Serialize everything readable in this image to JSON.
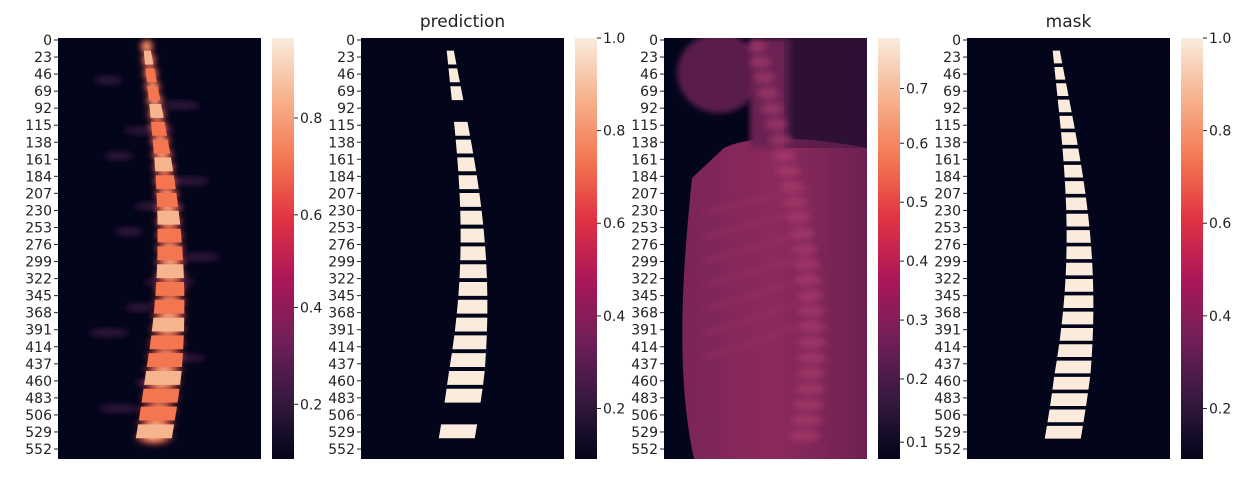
{
  "chart_data": [
    {
      "type": "heatmap",
      "title": "",
      "y_ticks": [
        "0",
        "23",
        "46",
        "69",
        "92",
        "115",
        "138",
        "161",
        "184",
        "207",
        "230",
        "253",
        "276",
        "299",
        "322",
        "345",
        "368",
        "391",
        "414",
        "437",
        "460",
        "483",
        "506",
        "529",
        "552"
      ],
      "colorbar": {
        "ticks": [
          "0.8",
          "0.6",
          "0.4",
          "0.2"
        ]
      },
      "content": "spine-probability"
    },
    {
      "type": "heatmap",
      "title": "prediction",
      "y_ticks": [
        "0",
        "23",
        "46",
        "69",
        "92",
        "115",
        "138",
        "161",
        "184",
        "207",
        "230",
        "253",
        "276",
        "299",
        "322",
        "345",
        "368",
        "391",
        "414",
        "437",
        "460",
        "483",
        "506",
        "529",
        "552"
      ],
      "colorbar": {
        "ticks": [
          "1.0",
          "0.8",
          "0.6",
          "0.4",
          "0.2"
        ]
      },
      "content": "spine-binary-fragmented"
    },
    {
      "type": "heatmap",
      "title": "",
      "y_ticks": [
        "0",
        "23",
        "46",
        "69",
        "92",
        "115",
        "138",
        "161",
        "184",
        "207",
        "230",
        "253",
        "276",
        "299",
        "322",
        "345",
        "368",
        "391",
        "414",
        "437",
        "460",
        "483",
        "506",
        "529",
        "552"
      ],
      "colorbar": {
        "ticks": [
          "0.7",
          "0.6",
          "0.5",
          "0.4",
          "0.3",
          "0.2",
          "0.1"
        ]
      },
      "content": "x-ray"
    },
    {
      "type": "heatmap",
      "title": "mask",
      "y_ticks": [
        "0",
        "23",
        "46",
        "69",
        "92",
        "115",
        "138",
        "161",
        "184",
        "207",
        "230",
        "253",
        "276",
        "299",
        "322",
        "345",
        "368",
        "391",
        "414",
        "437",
        "460",
        "483",
        "506",
        "529",
        "552"
      ],
      "colorbar": {
        "ticks": [
          "1.0",
          "0.8",
          "0.6",
          "0.4",
          "0.2"
        ]
      },
      "content": "spine-binary"
    }
  ],
  "colors": {
    "rocket": [
      "#03051a",
      "#35193e",
      "#701f57",
      "#ad1759",
      "#e13342",
      "#f37651",
      "#f6b48f",
      "#faebdd"
    ]
  }
}
